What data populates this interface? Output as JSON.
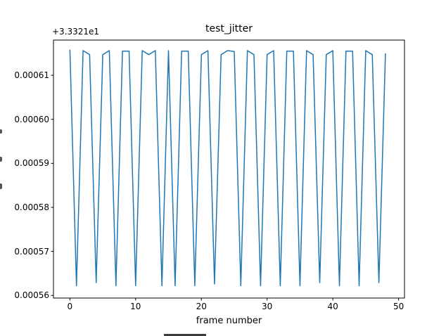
{
  "figure": {
    "background": "#ffffff",
    "bottom_fragment_color": "#3c3c3c",
    "ylabel_clipped": true
  },
  "chart_data": {
    "type": "line",
    "title": "test_jitter",
    "xlabel": "frame number",
    "ylabel": "",
    "offset_text": "+3.3321e1",
    "line_color": "#1f77b4",
    "line_width": 1.5,
    "grid": false,
    "legend": null,
    "xlim": [
      -2.5,
      50.9
    ],
    "ylim": [
      0.0005594,
      0.000618
    ],
    "xticks": [
      0,
      10,
      20,
      30,
      40,
      50
    ],
    "xtick_labels": [
      "0",
      "10",
      "20",
      "30",
      "40",
      "50"
    ],
    "yticks": [
      0.00056,
      0.00057,
      0.00058,
      0.00059,
      0.0006,
      0.00061
    ],
    "ytick_labels": [
      "0.00056",
      "0.00057",
      "0.00058",
      "0.00059",
      "0.00060",
      "0.00061"
    ],
    "y_offset_value": 33.321,
    "x": [
      0,
      1,
      2,
      3,
      4,
      5,
      6,
      7,
      8,
      9,
      10,
      11,
      12,
      13,
      14,
      15,
      16,
      17,
      18,
      19,
      20,
      21,
      22,
      23,
      24,
      25,
      26,
      27,
      28,
      29,
      30,
      31,
      32,
      33,
      34,
      35,
      36,
      37,
      38,
      39,
      40,
      41,
      42,
      43,
      44,
      45,
      46,
      47,
      48
    ],
    "values": [
      0.0006157,
      0.0005622,
      0.0006156,
      0.0006147,
      0.0005629,
      0.0006147,
      0.0006156,
      0.0005622,
      0.0006155,
      0.0006155,
      0.0005622,
      0.0006156,
      0.0006147,
      0.0006156,
      0.0005622,
      0.0006156,
      0.0005622,
      0.0006155,
      0.0006155,
      0.0005622,
      0.0006147,
      0.0006156,
      0.0005626,
      0.0006147,
      0.0006156,
      0.0006154,
      0.0005622,
      0.0006156,
      0.0006147,
      0.0005622,
      0.0006147,
      0.0006156,
      0.0005622,
      0.0006155,
      0.0006155,
      0.0005622,
      0.0006156,
      0.0006147,
      0.0005629,
      0.0006147,
      0.0006156,
      0.0005622,
      0.0006155,
      0.0006155,
      0.0005622,
      0.0006156,
      0.0006147,
      0.0005629,
      0.0006149
    ]
  }
}
